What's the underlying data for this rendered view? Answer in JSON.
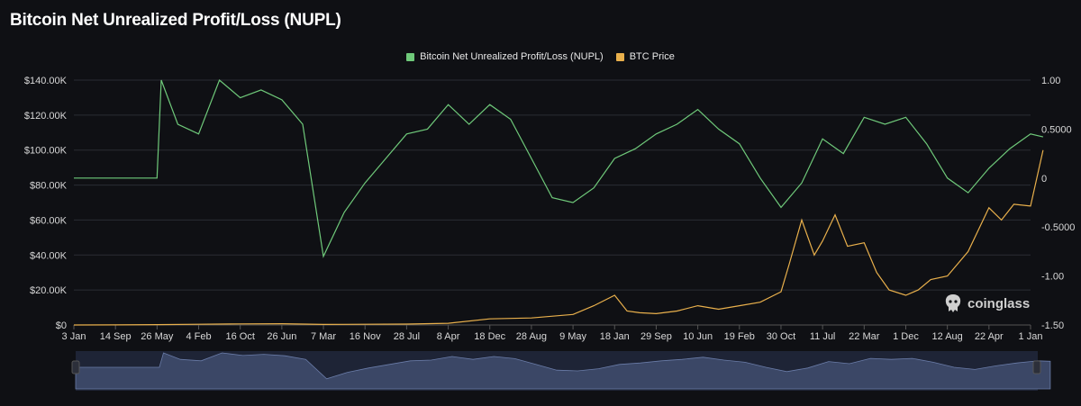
{
  "title": "Bitcoin Net Unrealized Profit/Loss (NUPL)",
  "legend": [
    {
      "label": "Bitcoin Net Unrealized Profit/Loss (NUPL)",
      "color": "#6fc97a"
    },
    {
      "label": "BTC Price",
      "color": "#e9b04c"
    }
  ],
  "brand": "coinglass",
  "chart_data": {
    "type": "line",
    "title": "Bitcoin Net Unrealized Profit/Loss (NUPL)",
    "x_tick_labels": [
      "3 Jan",
      "14 Sep",
      "26 May",
      "4 Feb",
      "16 Oct",
      "26 Jun",
      "7 Mar",
      "16 Nov",
      "28 Jul",
      "8 Apr",
      "18 Dec",
      "28 Aug",
      "9 May",
      "18 Jan",
      "29 Sep",
      "10 Jun",
      "19 Feb",
      "30 Oct",
      "11 Jul",
      "22 Mar",
      "1 Dec",
      "12 Aug",
      "22 Apr",
      "1 Jan"
    ],
    "y_left": {
      "ticks": [
        0,
        20000,
        40000,
        60000,
        80000,
        100000,
        120000,
        140000
      ],
      "tick_labels": [
        "$0",
        "$20.00K",
        "$40.00K",
        "$60.00K",
        "$80.00K",
        "$100.00K",
        "$120.00K",
        "$140.00K"
      ],
      "ylim": [
        0,
        140000
      ]
    },
    "y_right": {
      "ticks": [
        -1.5,
        -1,
        -0.5,
        0,
        0.5,
        1
      ],
      "tick_labels": [
        "-1.50",
        "-1.00",
        "-0.5000",
        "0",
        "0.5000",
        "1.00"
      ],
      "ylim": [
        -1.5,
        1.0
      ]
    },
    "grid": true,
    "legend_position": "top-center",
    "series": [
      {
        "name": "Bitcoin Net Unrealized Profit/Loss (NUPL)",
        "axis": "right",
        "color": "#6fc97a",
        "x": [
          0,
          0.5,
          1,
          1.5,
          2,
          2.1,
          2.5,
          3,
          3.5,
          4,
          4.5,
          5,
          5.5,
          6,
          6.5,
          7,
          7.5,
          8,
          8.5,
          9,
          9.5,
          10,
          10.5,
          11,
          11.5,
          12,
          12.5,
          13,
          13.5,
          14,
          14.5,
          15,
          15.5,
          16,
          16.5,
          17,
          17.5,
          18,
          18.5,
          19,
          19.5,
          20,
          20.5,
          21,
          21.5,
          22,
          22.5,
          23,
          23.3
        ],
        "values": [
          0,
          0,
          0,
          0,
          0,
          1.0,
          0.55,
          0.45,
          1.0,
          0.82,
          0.9,
          0.8,
          0.55,
          -0.8,
          -0.35,
          -0.05,
          0.2,
          0.45,
          0.5,
          0.75,
          0.55,
          0.75,
          0.6,
          0.2,
          -0.2,
          -0.25,
          -0.1,
          0.2,
          0.3,
          0.45,
          0.55,
          0.7,
          0.5,
          0.35,
          0.0,
          -0.3,
          -0.05,
          0.4,
          0.25,
          0.62,
          0.55,
          0.62,
          0.35,
          0.0,
          -0.15,
          0.1,
          0.3,
          0.45,
          0.42
        ]
      },
      {
        "name": "BTC Price",
        "axis": "left",
        "color": "#e9b04c",
        "x": [
          0,
          1,
          2,
          3,
          4,
          5,
          6,
          7,
          8,
          9,
          10,
          11,
          12,
          12.5,
          13,
          13.3,
          13.6,
          14,
          14.5,
          15,
          15.5,
          16,
          16.5,
          17,
          17.2,
          17.5,
          17.8,
          18,
          18.3,
          18.6,
          19,
          19.3,
          19.6,
          20,
          20.3,
          20.6,
          21,
          21.5,
          22,
          22.3,
          22.6,
          23,
          23.3
        ],
        "values": [
          0,
          50,
          200,
          400,
          600,
          700,
          300,
          400,
          500,
          1000,
          3500,
          4000,
          6000,
          11000,
          17000,
          8000,
          7000,
          6500,
          8000,
          11000,
          9000,
          11000,
          13000,
          19000,
          35000,
          60000,
          40000,
          48000,
          63000,
          45000,
          47000,
          30000,
          20000,
          17000,
          20000,
          26000,
          28000,
          42000,
          67000,
          60000,
          69000,
          68000,
          100000
        ]
      }
    ]
  }
}
